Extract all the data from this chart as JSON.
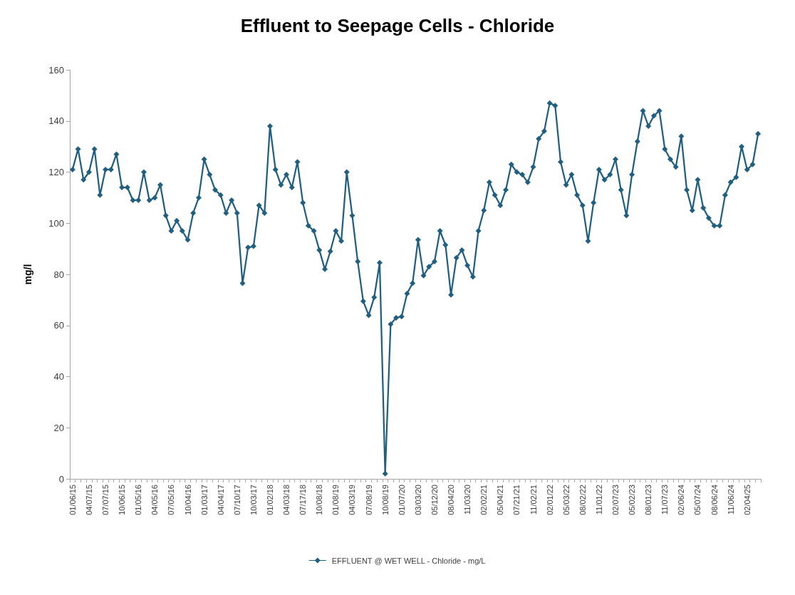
{
  "chart_data": {
    "type": "line",
    "title": "Effluent to Seepage Cells - Chloride",
    "ylabel": "mg/l",
    "categories": [
      "01/06/15",
      null,
      null,
      "04/07/15",
      null,
      null,
      "07/07/15",
      null,
      null,
      "10/06/15",
      null,
      null,
      "01/05/16",
      null,
      null,
      "04/05/16",
      null,
      null,
      "07/05/16",
      null,
      null,
      "10/04/16",
      null,
      null,
      "01/03/17",
      null,
      null,
      "04/04/17",
      null,
      null,
      "07/10/17",
      null,
      null,
      "10/03/17",
      null,
      null,
      "01/02/18",
      null,
      null,
      "04/03/18",
      null,
      null,
      "07/17/18",
      null,
      null,
      "10/08/18",
      null,
      null,
      "01/08/19",
      null,
      null,
      "04/03/19",
      null,
      null,
      "07/08/19",
      null,
      null,
      "10/08/19",
      null,
      null,
      "01/07/20",
      null,
      null,
      "03/03/20",
      null,
      null,
      "05/12/20",
      null,
      null,
      "08/04/20",
      null,
      null,
      "11/03/20",
      null,
      null,
      "02/02/21",
      null,
      null,
      "05/04/21",
      null,
      null,
      "07/21/21",
      null,
      null,
      "11/02/21",
      null,
      null,
      "02/01/22",
      null,
      null,
      "05/03/22",
      null,
      null,
      "08/02/22",
      null,
      null,
      "11/01/22",
      null,
      null,
      "02/07/23",
      null,
      null,
      "05/02/23",
      null,
      null,
      "08/01/23",
      null,
      null,
      "11/07/23",
      null,
      null,
      "02/06/24",
      null,
      null,
      "05/07/24",
      null,
      null,
      "08/06/24",
      null,
      null,
      "11/06/24",
      null,
      null,
      "02/04/25",
      null,
      null
    ],
    "series": [
      {
        "name": "EFFLUENT @ WET WELL - Chloride - mg/L",
        "color": "#215f80",
        "values": [
          121,
          129,
          117,
          120,
          129,
          111,
          121,
          121,
          127,
          114,
          114,
          109,
          109,
          120,
          109,
          110,
          115,
          103,
          97,
          101,
          97,
          93.5,
          104,
          110,
          125,
          119,
          113,
          111,
          104,
          109,
          104,
          76.5,
          90.5,
          91,
          107,
          104,
          138,
          121,
          115,
          119,
          114,
          124,
          108,
          99,
          97,
          89.5,
          82,
          89,
          97,
          93,
          120,
          103,
          85,
          69.5,
          64,
          71,
          84.5,
          2,
          60.5,
          63,
          63.5,
          72.5,
          76.5,
          93.5,
          79.5,
          83,
          85,
          97,
          91.5,
          72,
          86.5,
          89.5,
          83.5,
          79,
          97,
          105,
          116,
          111,
          107,
          113,
          123,
          120,
          119,
          116,
          122,
          133,
          136,
          147,
          146,
          124,
          115,
          119,
          111,
          107,
          93,
          108,
          121,
          117,
          119,
          125,
          113,
          103,
          119,
          132,
          144,
          138,
          142,
          144,
          129,
          125,
          122,
          134,
          113,
          105,
          117,
          106,
          102,
          99,
          99,
          111,
          116,
          118,
          130,
          121,
          123,
          135
        ]
      }
    ],
    "ylim": [
      0,
      160
    ],
    "yticks": [
      0,
      20,
      40,
      60,
      80,
      100,
      120,
      140,
      160
    ],
    "grid": false,
    "legend": "bottom",
    "marker": "diamond",
    "line_style": "solid"
  }
}
